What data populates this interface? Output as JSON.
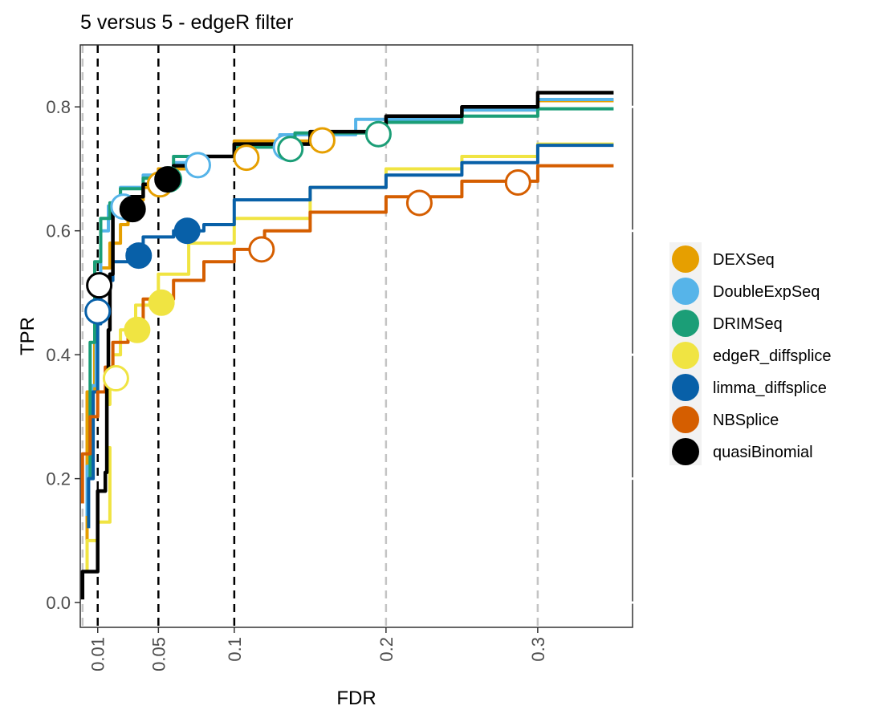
{
  "chart_data": {
    "type": "line",
    "title": "5 versus 5 - edgeR filter",
    "xlabel": "FDR",
    "ylabel": "TPR",
    "xlim": [
      -0.0015,
      0.3625
    ],
    "ylim": [
      -0.04,
      0.9
    ],
    "x_ticks": [
      {
        "value": 0.01,
        "label": "0.01"
      },
      {
        "value": 0.05,
        "label": "0.05"
      },
      {
        "value": 0.1,
        "label": "0.1"
      },
      {
        "value": 0.2,
        "label": "0.2"
      },
      {
        "value": 0.3,
        "label": "0.3"
      }
    ],
    "y_ticks": [
      {
        "value": 0.0,
        "label": "0.0"
      },
      {
        "value": 0.2,
        "label": "0.2"
      },
      {
        "value": 0.4,
        "label": "0.4"
      },
      {
        "value": 0.6,
        "label": "0.6"
      },
      {
        "value": 0.8,
        "label": "0.8"
      }
    ],
    "reference_lines": {
      "black_dashed": [
        0.01,
        0.05,
        0.1
      ],
      "grey_dashed": [
        0.0,
        0.2,
        0.3
      ]
    },
    "legend_position": "right",
    "series": [
      {
        "name": "DEXSeq",
        "color": "#E69F00",
        "points": [
          [
            0.003,
            0.1
          ],
          [
            0.008,
            0.34
          ],
          [
            0.012,
            0.47
          ],
          [
            0.018,
            0.54
          ],
          [
            0.025,
            0.58
          ],
          [
            0.03,
            0.61
          ],
          [
            0.04,
            0.65
          ],
          [
            0.05,
            0.67
          ],
          [
            0.07,
            0.7
          ],
          [
            0.1,
            0.72
          ],
          [
            0.15,
            0.745
          ],
          [
            0.2,
            0.76
          ],
          [
            0.25,
            0.78
          ],
          [
            0.3,
            0.795
          ],
          [
            0.35,
            0.81
          ]
        ],
        "markers": [
          {
            "fdr": 0.051,
            "tpr": 0.675,
            "filled": false
          },
          {
            "fdr": 0.108,
            "tpr": 0.718,
            "filled": false
          },
          {
            "fdr": 0.158,
            "tpr": 0.746,
            "filled": false
          }
        ]
      },
      {
        "name": "DoubleExpSeq",
        "color": "#56B4E9",
        "points": [
          [
            0.003,
            0.14
          ],
          [
            0.006,
            0.22
          ],
          [
            0.009,
            0.35
          ],
          [
            0.012,
            0.52
          ],
          [
            0.017,
            0.6
          ],
          [
            0.025,
            0.64
          ],
          [
            0.04,
            0.67
          ],
          [
            0.06,
            0.69
          ],
          [
            0.08,
            0.71
          ],
          [
            0.1,
            0.72
          ],
          [
            0.13,
            0.735
          ],
          [
            0.18,
            0.755
          ],
          [
            0.25,
            0.78
          ],
          [
            0.3,
            0.795
          ],
          [
            0.35,
            0.812
          ]
        ],
        "markers": [
          {
            "fdr": 0.027,
            "tpr": 0.639,
            "filled": false
          },
          {
            "fdr": 0.076,
            "tpr": 0.706,
            "filled": false
          },
          {
            "fdr": 0.134,
            "tpr": 0.735,
            "filled": false
          }
        ]
      },
      {
        "name": "DRIMSeq",
        "color": "#1B9E77",
        "points": [
          [
            0.005,
            0.2
          ],
          [
            0.008,
            0.42
          ],
          [
            0.012,
            0.55
          ],
          [
            0.018,
            0.62
          ],
          [
            0.025,
            0.645
          ],
          [
            0.04,
            0.668
          ],
          [
            0.06,
            0.685
          ],
          [
            0.1,
            0.72
          ],
          [
            0.14,
            0.735
          ],
          [
            0.2,
            0.758
          ],
          [
            0.25,
            0.775
          ],
          [
            0.3,
            0.785
          ],
          [
            0.35,
            0.797
          ]
        ],
        "markers": [
          {
            "fdr": 0.057,
            "tpr": 0.683,
            "filled": false
          },
          {
            "fdr": 0.137,
            "tpr": 0.732,
            "filled": false
          },
          {
            "fdr": 0.195,
            "tpr": 0.756,
            "filled": false
          }
        ]
      },
      {
        "name": "edgeR_diffsplice",
        "color": "#F0E442",
        "points": [
          [
            0.003,
            0.05
          ],
          [
            0.01,
            0.1
          ],
          [
            0.018,
            0.13
          ],
          [
            0.016,
            0.25
          ],
          [
            0.018,
            0.32
          ],
          [
            0.02,
            0.36
          ],
          [
            0.025,
            0.4
          ],
          [
            0.035,
            0.44
          ],
          [
            0.05,
            0.48
          ],
          [
            0.07,
            0.53
          ],
          [
            0.1,
            0.58
          ],
          [
            0.15,
            0.62
          ],
          [
            0.2,
            0.67
          ],
          [
            0.25,
            0.7
          ],
          [
            0.3,
            0.72
          ],
          [
            0.35,
            0.74
          ]
        ],
        "markers": [
          {
            "fdr": 0.022,
            "tpr": 0.362,
            "filled": false
          },
          {
            "fdr": 0.036,
            "tpr": 0.44,
            "filled": true
          },
          {
            "fdr": 0.052,
            "tpr": 0.484,
            "filled": true
          }
        ]
      },
      {
        "name": "limma_diffsplice",
        "color": "#0860A8",
        "points": [
          [
            0.004,
            0.12
          ],
          [
            0.007,
            0.2
          ],
          [
            0.01,
            0.34
          ],
          [
            0.012,
            0.45
          ],
          [
            0.015,
            0.5
          ],
          [
            0.02,
            0.52
          ],
          [
            0.03,
            0.55
          ],
          [
            0.04,
            0.57
          ],
          [
            0.06,
            0.59
          ],
          [
            0.08,
            0.6
          ],
          [
            0.1,
            0.61
          ],
          [
            0.15,
            0.65
          ],
          [
            0.2,
            0.67
          ],
          [
            0.25,
            0.69
          ],
          [
            0.3,
            0.71
          ],
          [
            0.35,
            0.738
          ]
        ],
        "markers": [
          {
            "fdr": 0.01,
            "tpr": 0.47,
            "filled": false
          },
          {
            "fdr": 0.037,
            "tpr": 0.56,
            "filled": true
          },
          {
            "fdr": 0.069,
            "tpr": 0.6,
            "filled": true
          }
        ]
      },
      {
        "name": "NBSplice",
        "color": "#D55E00",
        "points": [
          [
            0.0,
            0.16
          ],
          [
            0.005,
            0.24
          ],
          [
            0.01,
            0.3
          ],
          [
            0.015,
            0.34
          ],
          [
            0.02,
            0.38
          ],
          [
            0.03,
            0.42
          ],
          [
            0.04,
            0.45
          ],
          [
            0.06,
            0.49
          ],
          [
            0.08,
            0.52
          ],
          [
            0.1,
            0.55
          ],
          [
            0.12,
            0.57
          ],
          [
            0.15,
            0.6
          ],
          [
            0.2,
            0.63
          ],
          [
            0.25,
            0.655
          ],
          [
            0.3,
            0.68
          ],
          [
            0.35,
            0.705
          ]
        ],
        "markers": [
          {
            "fdr": 0.118,
            "tpr": 0.57,
            "filled": false
          },
          {
            "fdr": 0.222,
            "tpr": 0.645,
            "filled": false
          },
          {
            "fdr": 0.287,
            "tpr": 0.678,
            "filled": false
          }
        ]
      },
      {
        "name": "quasiBinomial",
        "color": "#000000",
        "points": [
          [
            0.0,
            0.005
          ],
          [
            0.0,
            0.05
          ],
          [
            0.01,
            0.05
          ],
          [
            0.01,
            0.17
          ],
          [
            0.015,
            0.18
          ],
          [
            0.016,
            0.21
          ],
          [
            0.017,
            0.35
          ],
          [
            0.018,
            0.44
          ],
          [
            0.02,
            0.53
          ],
          [
            0.03,
            0.63
          ],
          [
            0.04,
            0.655
          ],
          [
            0.05,
            0.675
          ],
          [
            0.06,
            0.69
          ],
          [
            0.08,
            0.705
          ],
          [
            0.1,
            0.72
          ],
          [
            0.15,
            0.74
          ],
          [
            0.2,
            0.76
          ],
          [
            0.25,
            0.785
          ],
          [
            0.3,
            0.8
          ],
          [
            0.35,
            0.823
          ]
        ],
        "markers": [
          {
            "fdr": 0.011,
            "tpr": 0.512,
            "filled": false
          },
          {
            "fdr": 0.033,
            "tpr": 0.635,
            "filled": true
          },
          {
            "fdr": 0.056,
            "tpr": 0.683,
            "filled": true
          }
        ]
      }
    ]
  }
}
